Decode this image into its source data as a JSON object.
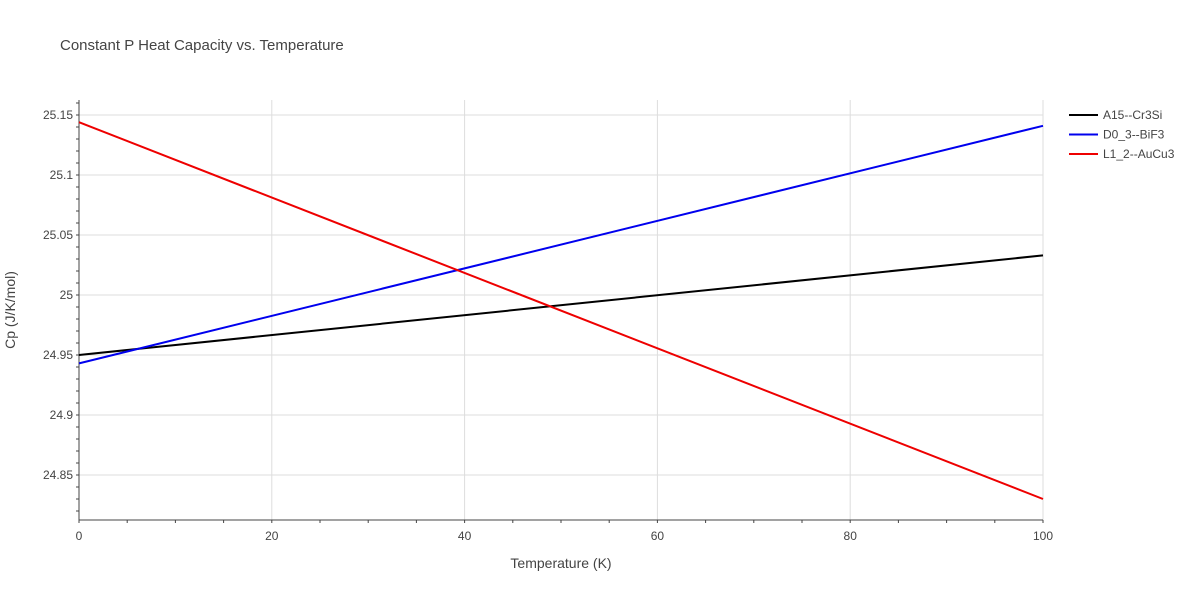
{
  "chart_data": {
    "type": "line",
    "title": "Constant P Heat Capacity vs. Temperature",
    "xlabel": "Temperature (K)",
    "ylabel": "Cp (J/K/mol)",
    "xlim": [
      0,
      100
    ],
    "ylim": [
      24.8125,
      25.1625
    ],
    "xticks": [
      0,
      20,
      40,
      60,
      80,
      100
    ],
    "yticks": [
      24.85,
      24.9,
      24.95,
      25,
      25.05,
      25.1,
      25.15
    ],
    "xtick_labels": [
      "0",
      "20",
      "40",
      "60",
      "80",
      "100"
    ],
    "ytick_labels": [
      "24.85",
      "24.9",
      "24.95",
      "25",
      "25.05",
      "25.1",
      "25.15"
    ],
    "grid": true,
    "legend_position": "top-right",
    "series": [
      {
        "name": "A15--Cr3Si",
        "color": "#000000",
        "x": [
          0,
          100
        ],
        "y": [
          24.95,
          25.033
        ]
      },
      {
        "name": "D0_3--BiF3",
        "color": "#0000ee",
        "x": [
          0,
          100
        ],
        "y": [
          24.943,
          25.141
        ]
      },
      {
        "name": "L1_2--AuCu3",
        "color": "#ee0000",
        "x": [
          0,
          100
        ],
        "y": [
          25.144,
          24.83
        ]
      }
    ]
  }
}
